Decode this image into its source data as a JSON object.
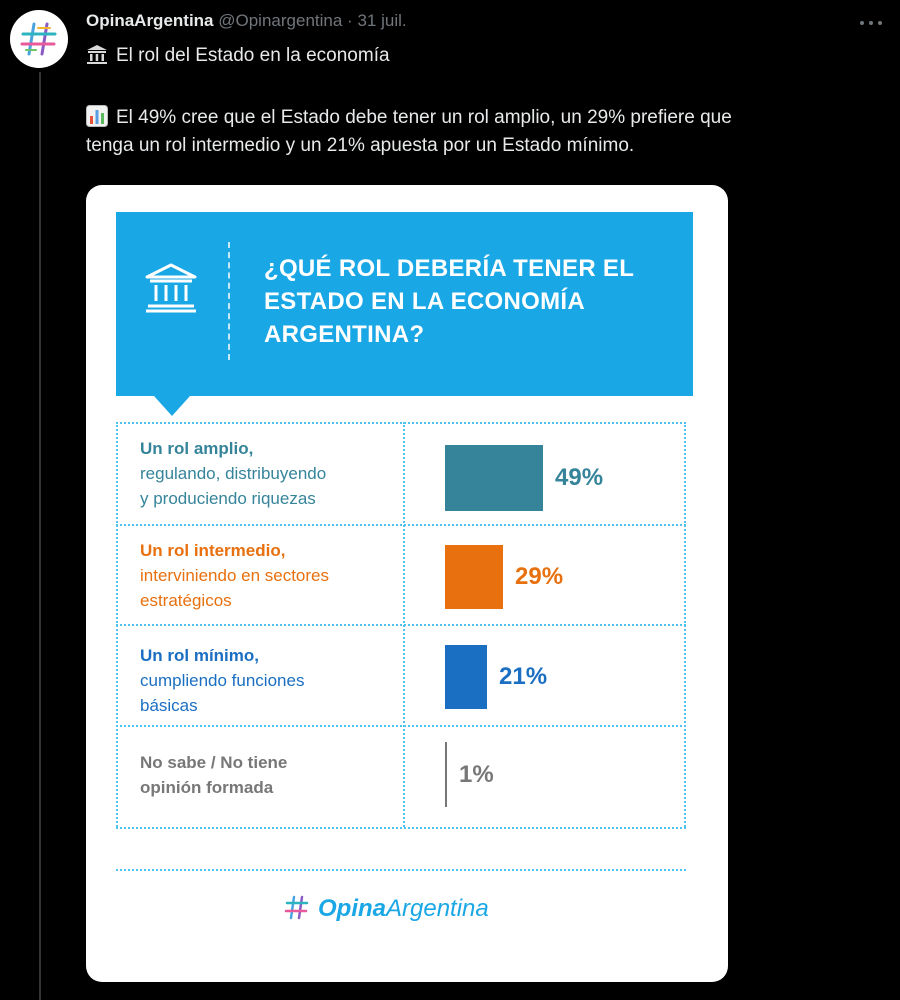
{
  "tweet": {
    "author_name": "OpinaArgentina",
    "author_handle": "@Opinargentina",
    "separator": "·",
    "date": "31 juil.",
    "line1": "El rol del Estado en la economía",
    "line2": "El 49% cree que el Estado debe tener un rol amplio, un 29% prefiere que",
    "line3": "tenga un rol intermedio y un 21% apuesta por un Estado mínimo.",
    "icons": [
      "building-emoji-icon",
      "bar-chart-emoji-icon",
      "more-options-icon"
    ]
  },
  "card": {
    "title": "¿QUÉ ROL DEBERÍA TENER EL ESTADO EN LA ECONOMÍA ARGENTINA?",
    "brand_part1": "Opina",
    "brand_part2": "Argentina",
    "colors": {
      "banner": "#1aa7e5",
      "grid": "#4fc3ee"
    }
  },
  "chart_data": {
    "type": "bar",
    "orientation": "horizontal",
    "categories": [
      {
        "title": "Un rol amplio,",
        "sub1": "regulando, distribuyendo",
        "sub2": "y produciendo riquezas",
        "color": "#35849a"
      },
      {
        "title": "Un rol intermedio,",
        "sub1": "interviniendo en sectores",
        "sub2": "estratégicos",
        "color": "#e8700e"
      },
      {
        "title": "Un rol mínimo,",
        "sub1": "cumpliendo funciones",
        "sub2": "básicas",
        "color": "#1b6fc2"
      },
      {
        "title": "No sabe / No tiene",
        "sub1": "opinión formada",
        "sub2": "",
        "color": "#777777"
      }
    ],
    "values": [
      49,
      29,
      21,
      1
    ],
    "value_labels": [
      "49%",
      "29%",
      "21%",
      "1%"
    ],
    "unit": "%"
  }
}
